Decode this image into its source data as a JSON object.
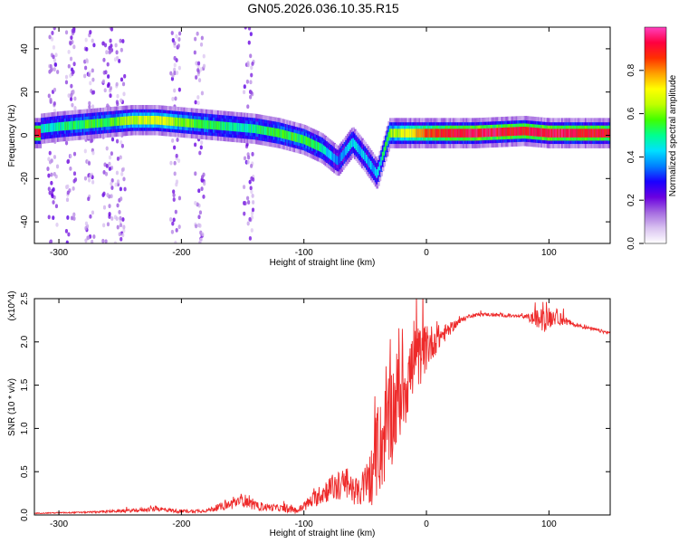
{
  "figure_title": "GN05.2026.036.10.35.R15",
  "colors": {
    "snr_line": "#ee2a2a",
    "colormap": [
      "#ffffff",
      "#d9c2f0",
      "#a56be0",
      "#6a00e0",
      "#1a00ff",
      "#0080ff",
      "#00e0ff",
      "#00ff90",
      "#40ff00",
      "#c0ff00",
      "#ffff00",
      "#ffa000",
      "#ff3000",
      "#ff0040",
      "#ff40c0"
    ]
  },
  "chart_data": [
    {
      "type": "heatmap",
      "name": "spectrogram",
      "xlabel": "Height of straight line (km)",
      "ylabel": "Frequency (Hz)",
      "xlim": [
        -320,
        150
      ],
      "ylim": [
        -50,
        50
      ],
      "xticks": [
        -300,
        -200,
        -100,
        0,
        100
      ],
      "xtick_labels": [
        "-300",
        "-200",
        "-100",
        "0",
        "100"
      ],
      "yticks": [
        -40,
        -20,
        0,
        20,
        40
      ],
      "ytick_labels": [
        "-40",
        "-20",
        "0",
        "20",
        "40"
      ],
      "colorbar": {
        "label": "Normalized spectral amplitude",
        "range": [
          0,
          1
        ],
        "ticks": [
          0.0,
          0.2,
          0.4,
          0.6,
          0.8
        ],
        "tick_labels": [
          "0.0",
          "0.2",
          "0.4",
          "0.6",
          "0.8"
        ]
      },
      "ridge": [
        {
          "x": -315,
          "f": 3,
          "amp": 0.45
        },
        {
          "x": -300,
          "f": 4,
          "amp": 0.5
        },
        {
          "x": -280,
          "f": 5,
          "amp": 0.55
        },
        {
          "x": -260,
          "f": 6,
          "amp": 0.55
        },
        {
          "x": -240,
          "f": 7,
          "amp": 0.65
        },
        {
          "x": -220,
          "f": 7,
          "amp": 0.7
        },
        {
          "x": -200,
          "f": 6,
          "amp": 0.6
        },
        {
          "x": -180,
          "f": 5,
          "amp": 0.55
        },
        {
          "x": -160,
          "f": 4,
          "amp": 0.5
        },
        {
          "x": -140,
          "f": 3,
          "amp": 0.5
        },
        {
          "x": -120,
          "f": 1,
          "amp": 0.55
        },
        {
          "x": -100,
          "f": -2,
          "amp": 0.55
        },
        {
          "x": -85,
          "f": -6,
          "amp": 0.5
        },
        {
          "x": -72,
          "f": -12,
          "amp": 0.35
        },
        {
          "x": -60,
          "f": -3,
          "amp": 0.45
        },
        {
          "x": -50,
          "f": -10,
          "amp": 0.4
        },
        {
          "x": -40,
          "f": -18,
          "amp": 0.4
        },
        {
          "x": -30,
          "f": 1,
          "amp": 0.6
        },
        {
          "x": 0,
          "f": 1,
          "amp": 0.85
        },
        {
          "x": 40,
          "f": 1,
          "amp": 0.95
        },
        {
          "x": 80,
          "f": 2,
          "amp": 0.9
        },
        {
          "x": 100,
          "f": 1,
          "amp": 0.95
        },
        {
          "x": 150,
          "f": 1,
          "amp": 0.9
        }
      ],
      "noise_columns_km": [
        -305,
        -290,
        -275,
        -260,
        -250,
        -205,
        -185,
        -145
      ]
    },
    {
      "type": "line",
      "name": "snr",
      "xlabel": "Height of straight line (km)",
      "ylabel": "SNR (10 * v/v)",
      "yscale_label": "(x10^4)",
      "xlim": [
        -320,
        150
      ],
      "ylim": [
        0,
        2.5
      ],
      "xticks": [
        -300,
        -200,
        -100,
        0,
        100
      ],
      "xtick_labels": [
        "-300",
        "-200",
        "-100",
        "0",
        "100"
      ],
      "yticks": [
        0.0,
        0.5,
        1.0,
        1.5,
        2.0,
        2.5
      ],
      "ytick_labels": [
        "0.0",
        "0.5",
        "1.0",
        "1.5",
        "2.0",
        "2.5"
      ],
      "series": [
        {
          "name": "SNR",
          "x": [
            -320,
            -280,
            -240,
            -220,
            -200,
            -180,
            -160,
            -150,
            -140,
            -120,
            -105,
            -95,
            -80,
            -65,
            -55,
            -45,
            -35,
            -25,
            -15,
            -5,
            5,
            15,
            25,
            35,
            45,
            60,
            80,
            95,
            105,
            120,
            135,
            150
          ],
          "y": [
            0.02,
            0.03,
            0.05,
            0.07,
            0.04,
            0.05,
            0.12,
            0.18,
            0.1,
            0.08,
            0.05,
            0.15,
            0.3,
            0.35,
            0.25,
            0.45,
            0.9,
            1.3,
            1.6,
            1.85,
            2.0,
            2.1,
            2.22,
            2.3,
            2.32,
            2.31,
            2.29,
            2.25,
            2.3,
            2.2,
            2.15,
            2.1
          ],
          "noise": [
            0.005,
            0.008,
            0.02,
            0.03,
            0.02,
            0.02,
            0.06,
            0.08,
            0.05,
            0.04,
            0.04,
            0.08,
            0.15,
            0.2,
            0.15,
            0.35,
            0.6,
            0.6,
            0.5,
            0.35,
            0.2,
            0.1,
            0.04,
            0.02,
            0.02,
            0.02,
            0.02,
            0.15,
            0.1,
            0.02,
            0.02,
            0.02
          ]
        }
      ]
    }
  ]
}
